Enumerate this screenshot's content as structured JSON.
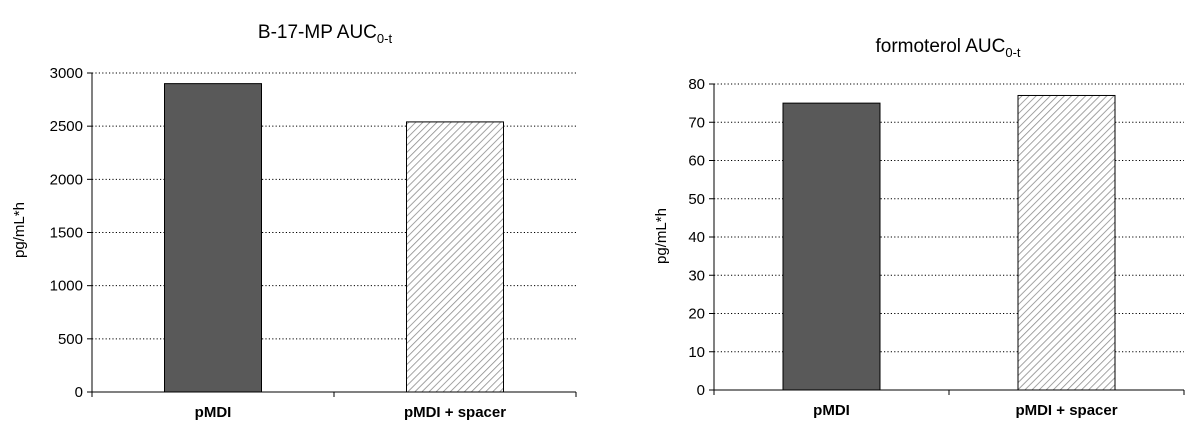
{
  "chart_data": [
    {
      "type": "bar",
      "title": "B-17-MP AUC",
      "title_subscript": "0-t",
      "ylabel": "pg/mL*h",
      "xlabel": "",
      "categories": [
        "pMDI",
        "pMDI + spacer"
      ],
      "values": [
        2900,
        2540
      ],
      "ylim": [
        0,
        3000
      ],
      "yticks": [
        0,
        500,
        1000,
        1500,
        2000,
        2500,
        3000
      ],
      "grid": "horizontal dotted",
      "bar_styles": [
        "solid",
        "hatched"
      ]
    },
    {
      "type": "bar",
      "title": "formoterol AUC",
      "title_subscript": "0-t",
      "ylabel": "pg/mL*h",
      "xlabel": "",
      "categories": [
        "pMDI",
        "pMDI + spacer"
      ],
      "values": [
        75,
        77
      ],
      "ylim": [
        0,
        80
      ],
      "yticks": [
        0,
        10,
        20,
        30,
        40,
        50,
        60,
        70,
        80
      ],
      "grid": "horizontal dotted",
      "bar_styles": [
        "solid",
        "hatched"
      ]
    }
  ],
  "colors": {
    "solid_bar": "#595959",
    "hatch_line": "#8c8c8c",
    "hatch_bg": "#ffffff",
    "axis": "#000000",
    "grid": "#000000"
  }
}
